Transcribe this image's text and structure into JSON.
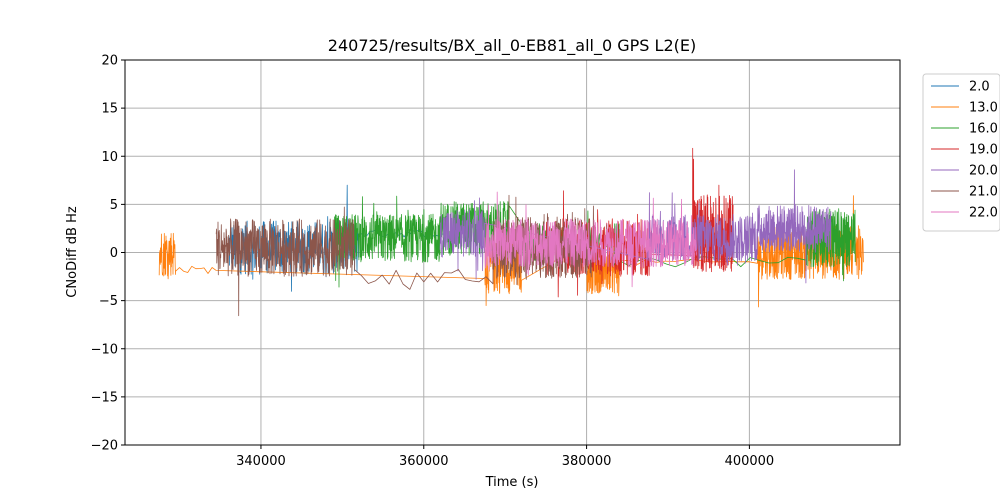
{
  "chart_data": {
    "type": "line",
    "title": "240725/results/BX_all_0-EB81_all_0 GPS L2(E)",
    "xlabel": "Time (s)",
    "ylabel": "CNoDiff dB Hz",
    "xlim": [
      323300,
      418500
    ],
    "ylim": [
      -20,
      20
    ],
    "x_ticks": [
      340000,
      360000,
      380000,
      400000
    ],
    "x_tick_labels": [
      "340000",
      "360000",
      "380000",
      "400000"
    ],
    "y_ticks": [
      -20,
      -15,
      -10,
      -5,
      0,
      5,
      10,
      15,
      20
    ],
    "y_tick_labels": [
      "−20",
      "−15",
      "−10",
      "−5",
      "0",
      "5",
      "10",
      "15",
      "20"
    ],
    "grid": true,
    "legend_position": "outside-right",
    "series": [
      {
        "name": "2.0",
        "color": "#1f77b4",
        "segments": [
          {
            "x_start": 336000,
            "x_end": 352000,
            "mean": 0.5,
            "spread": 2.8,
            "points": 320
          },
          {
            "x_start": 352000,
            "x_end": 362500,
            "mean": 2.0,
            "spread": 0.4,
            "points": 30
          }
        ]
      },
      {
        "name": "13.0",
        "color": "#ff7f0e",
        "segments": [
          {
            "x_start": 327500,
            "x_end": 329500,
            "mean": 0.0,
            "spread": 2.5,
            "points": 60
          },
          {
            "x_start": 329500,
            "x_end": 334500,
            "mean": -1.8,
            "spread": 0.4,
            "points": 10
          },
          {
            "x_start": 367500,
            "x_end": 372000,
            "mean": -1.5,
            "spread": 2.8,
            "points": 140
          },
          {
            "x_start": 380000,
            "x_end": 384000,
            "mean": -1.5,
            "spread": 2.8,
            "points": 140
          },
          {
            "x_start": 384000,
            "x_end": 401000,
            "mean": -1.0,
            "spread": 0.3,
            "points": 15
          },
          {
            "x_start": 401000,
            "x_end": 414000,
            "mean": 0.0,
            "spread": 2.8,
            "points": 320
          }
        ]
      },
      {
        "name": "16.0",
        "color": "#2ca02c",
        "segments": [
          {
            "x_start": 349000,
            "x_end": 362000,
            "mean": 1.5,
            "spread": 2.5,
            "points": 420
          },
          {
            "x_start": 362000,
            "x_end": 370500,
            "mean": 2.5,
            "spread": 2.8,
            "points": 260
          },
          {
            "x_start": 372000,
            "x_end": 384000,
            "mean": 1.0,
            "spread": 2.0,
            "points": 200
          },
          {
            "x_start": 384000,
            "x_end": 407000,
            "mean": -1.0,
            "spread": 0.5,
            "points": 20
          },
          {
            "x_start": 407000,
            "x_end": 413000,
            "mean": 1.5,
            "spread": 3.0,
            "points": 240
          }
        ]
      },
      {
        "name": "19.0",
        "color": "#d62728",
        "segments": [
          {
            "x_start": 375000,
            "x_end": 388000,
            "mean": 0.5,
            "spread": 3.0,
            "points": 360
          },
          {
            "x_start": 393000,
            "x_end": 398000,
            "mean": 2.0,
            "spread": 4.0,
            "points": 240
          }
        ]
      },
      {
        "name": "20.0",
        "color": "#9467bd",
        "segments": [
          {
            "x_start": 362000,
            "x_end": 367500,
            "mean": 2.0,
            "spread": 2.5,
            "points": 160
          },
          {
            "x_start": 387500,
            "x_end": 401000,
            "mean": 1.5,
            "spread": 2.5,
            "points": 380
          },
          {
            "x_start": 401000,
            "x_end": 410000,
            "mean": 2.5,
            "spread": 2.5,
            "points": 280
          }
        ]
      },
      {
        "name": "21.0",
        "color": "#8c564b",
        "segments": [
          {
            "x_start": 334500,
            "x_end": 351500,
            "mean": 0.5,
            "spread": 3.0,
            "points": 460
          },
          {
            "x_start": 351500,
            "x_end": 368500,
            "mean": -2.5,
            "spread": 0.8,
            "points": 20
          },
          {
            "x_start": 368500,
            "x_end": 381000,
            "mean": 0.5,
            "spread": 3.2,
            "points": 400
          }
        ]
      },
      {
        "name": "22.0",
        "color": "#e377c2",
        "segments": [
          {
            "x_start": 367500,
            "x_end": 393500,
            "mean": 1.0,
            "spread": 2.5,
            "points": 750
          }
        ]
      }
    ]
  }
}
